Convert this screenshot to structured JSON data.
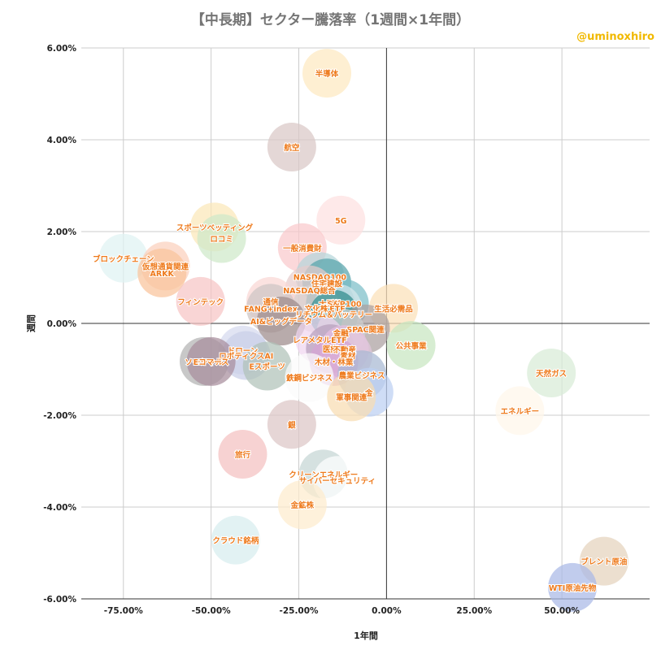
{
  "title": "【中長期】セクター騰落率（1週間×1年間）",
  "credit": "@uminoxhiro",
  "chart_data": {
    "type": "scatter",
    "title": "【中長期】セクター騰落率（1週間×1年間）",
    "xlabel": "1年間",
    "ylabel": "週間",
    "xlim": [
      -0.87,
      0.75
    ],
    "ylim": [
      -0.06,
      0.06
    ],
    "x_ticks": [
      "-75.00%",
      "-50.00%",
      "-25.00%",
      "0.00%",
      "25.00%",
      "50.00%"
    ],
    "y_ticks": [
      "6.00%",
      "4.00%",
      "2.00%",
      "0.00%",
      "-2.00%",
      "-4.00%",
      "-6.00%"
    ],
    "grid": true,
    "points": [
      {
        "label": "半導体",
        "x": -0.17,
        "y": 0.0545,
        "color": "#fde9c0"
      },
      {
        "label": "航空",
        "x": -0.27,
        "y": 0.0384,
        "color": "#d9c7c6"
      },
      {
        "label": "5G",
        "x": -0.13,
        "y": 0.0225,
        "color": "#fde0e0"
      },
      {
        "label": "スポーツベッティング",
        "x": -0.49,
        "y": 0.021,
        "color": "#fbe7b8"
      },
      {
        "label": "ロコミ",
        "x": -0.47,
        "y": 0.0185,
        "color": "#cfe9c9"
      },
      {
        "label": "一般消費財",
        "x": -0.24,
        "y": 0.0165,
        "color": "#f9c9cc"
      },
      {
        "label": "ブロックチェーン",
        "x": -0.75,
        "y": 0.0142,
        "color": "#dff2f3"
      },
      {
        "label": "仮想通貨関連",
        "x": -0.63,
        "y": 0.0125,
        "color": "#fbd0bc"
      },
      {
        "label": "ARKK",
        "x": -0.64,
        "y": 0.011,
        "color": "#f9c49b"
      },
      {
        "label": "NASDAQ100",
        "x": -0.19,
        "y": 0.0102,
        "color": "#b5d5da"
      },
      {
        "label": "住宅建設",
        "x": -0.17,
        "y": 0.0088,
        "color": "#58a3ab"
      },
      {
        "label": "NASDAQ総合",
        "x": -0.22,
        "y": 0.0073,
        "color": "#e6cccc"
      },
      {
        "label": "フィンテック",
        "x": -0.53,
        "y": 0.0048,
        "color": "#f7c5c5"
      },
      {
        "label": "通信",
        "x": -0.33,
        "y": 0.0048,
        "color": "#fad7d4"
      },
      {
        "label": "大型株",
        "x": -0.16,
        "y": 0.0043,
        "color": "#5a9ca6"
      },
      {
        "label": "S&P100",
        "x": -0.12,
        "y": 0.0043,
        "color": "#7cbec8"
      },
      {
        "label": "FANG+index",
        "x": -0.33,
        "y": 0.0033,
        "color": "#cdc5c4"
      },
      {
        "label": "文化株",
        "x": -0.2,
        "y": 0.0033,
        "color": "#dad0cf"
      },
      {
        "label": "ETF",
        "x": -0.14,
        "y": 0.0033,
        "color": "#d5e7ec"
      },
      {
        "label": "生活必需品",
        "x": 0.02,
        "y": 0.0033,
        "color": "#fbe1b9"
      },
      {
        "label": "リチウム＆バッテリー",
        "x": -0.15,
        "y": 0.002,
        "color": "#2f8a8a"
      },
      {
        "label": "AI&ビッグデータ",
        "x": -0.3,
        "y": 0.0005,
        "color": "#9d8b8b"
      },
      {
        "label": "SPAC関連",
        "x": -0.06,
        "y": -0.0012,
        "color": "#aaa0a0"
      },
      {
        "label": "金融",
        "x": -0.13,
        "y": -0.002,
        "color": "#d0d0d0"
      },
      {
        "label": "レアメタルETF",
        "x": -0.19,
        "y": -0.0035,
        "color": "#f0d5f0"
      },
      {
        "label": "公共事業",
        "x": 0.07,
        "y": -0.0048,
        "color": "#c7e6c1"
      },
      {
        "label": "ドローン",
        "x": -0.41,
        "y": -0.0058,
        "color": "#d5d9ee"
      },
      {
        "label": "医療",
        "x": -0.16,
        "y": -0.0055,
        "color": "#b79fbd"
      },
      {
        "label": "不動産",
        "x": -0.12,
        "y": -0.0057,
        "color": "#e8bfe1"
      },
      {
        "label": "素材",
        "x": -0.11,
        "y": -0.007,
        "color": "#e0c7dd"
      },
      {
        "label": "ロボティクスAI",
        "x": -0.4,
        "y": -0.007,
        "color": "#c9cfe7"
      },
      {
        "label": "ソーシャル",
        "x": -0.52,
        "y": -0.0083,
        "color": "#b3b3b3"
      },
      {
        "label": "Eコマース",
        "x": -0.5,
        "y": -0.0083,
        "color": "#a78e9d"
      },
      {
        "label": "木材・林業",
        "x": -0.15,
        "y": -0.0083,
        "color": "#d5a4d4"
      },
      {
        "label": "Eスポーツ",
        "x": -0.34,
        "y": -0.0093,
        "color": "#b0c2b8"
      },
      {
        "label": "鉄鋼ビジネス",
        "x": -0.22,
        "y": -0.0118,
        "color": "#fbfbfb"
      },
      {
        "label": "農業ビジネス",
        "x": -0.07,
        "y": -0.0112,
        "color": "#a8b8d3"
      },
      {
        "label": "天然ガス",
        "x": 0.47,
        "y": -0.0108,
        "color": "#d8ecd7"
      },
      {
        "label": "金",
        "x": -0.05,
        "y": -0.015,
        "color": "#bdd0f2"
      },
      {
        "label": "軍事関連",
        "x": -0.1,
        "y": -0.016,
        "color": "#f8dcb2"
      },
      {
        "label": "エネルギー",
        "x": 0.38,
        "y": -0.019,
        "color": "#fff6ea"
      },
      {
        "label": "銀",
        "x": -0.27,
        "y": -0.022,
        "color": "#dcc6c6"
      },
      {
        "label": "旅行",
        "x": -0.41,
        "y": -0.0285,
        "color": "#f4c0c0"
      },
      {
        "label": "クリーンエネルギー",
        "x": -0.18,
        "y": -0.0328,
        "color": "#c5d6d4"
      },
      {
        "label": "サイバーセキュリティ",
        "x": -0.14,
        "y": -0.0342,
        "color": "#ffffff"
      },
      {
        "label": "金鉱株",
        "x": -0.24,
        "y": -0.0395,
        "color": "#fdeccd"
      },
      {
        "label": "クラウド銘柄",
        "x": -0.43,
        "y": -0.0472,
        "color": "#d7edef"
      },
      {
        "label": "ブレント原油",
        "x": 0.62,
        "y": -0.0518,
        "color": "#e4d2bd"
      },
      {
        "label": "WTI原油先物",
        "x": 0.53,
        "y": -0.0575,
        "color": "#a9b9e6"
      }
    ]
  }
}
